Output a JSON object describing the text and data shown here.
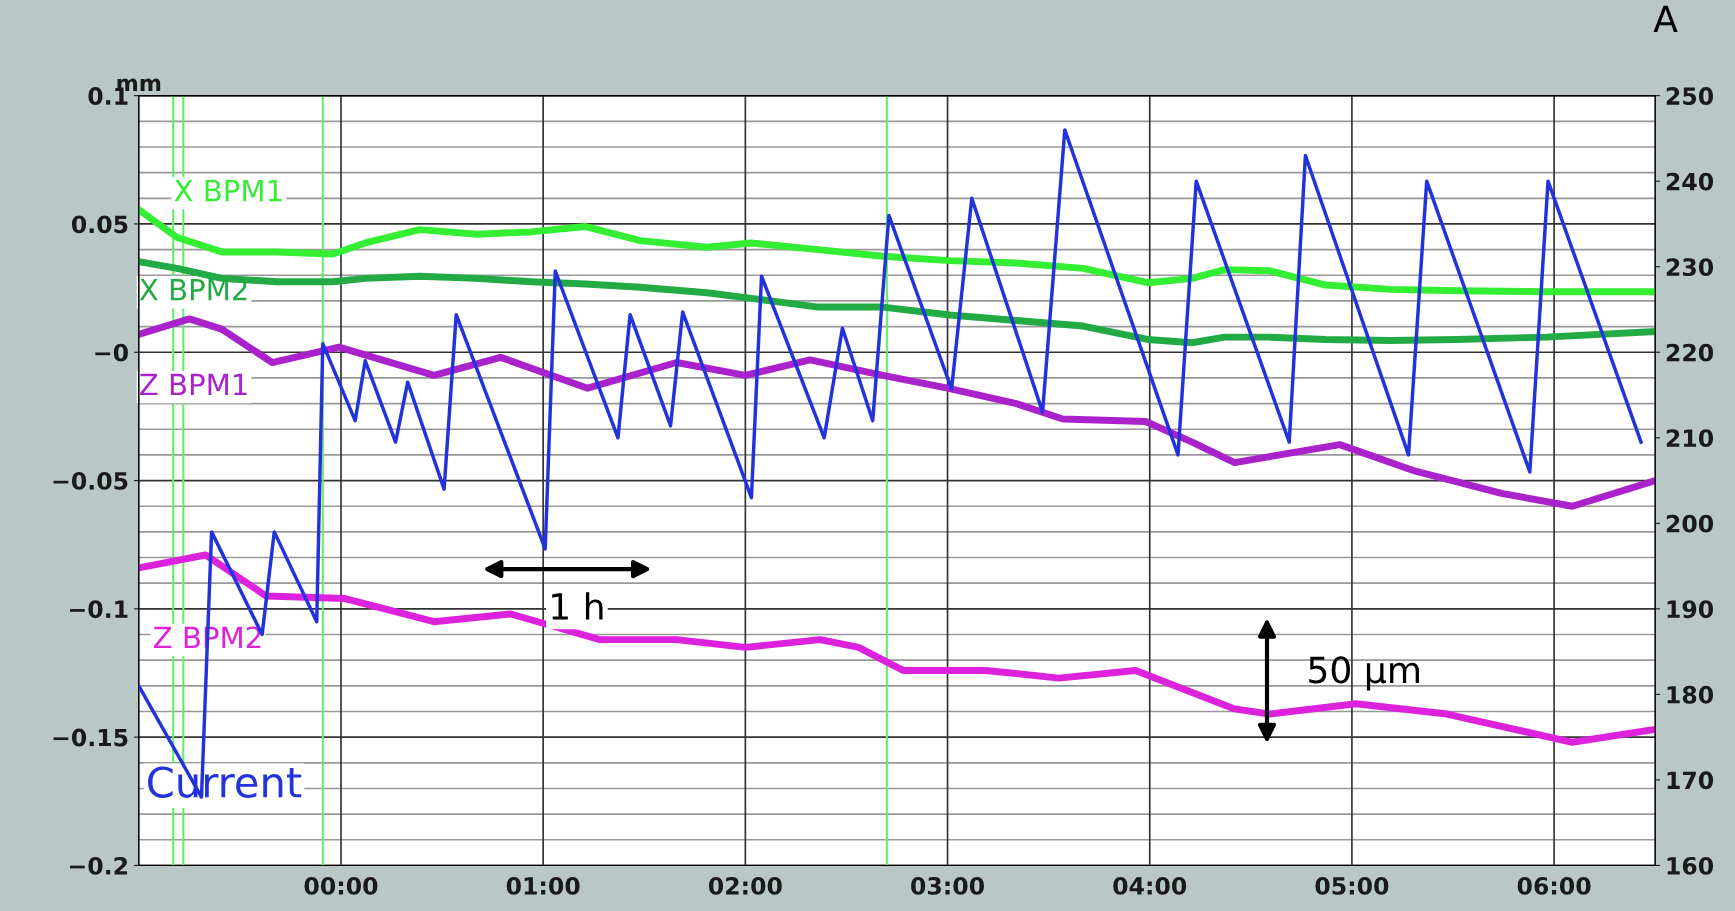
{
  "chart_data": {
    "type": "line",
    "ylabel": "mm",
    "annotations": [
      "1 h",
      "50 µm",
      "A"
    ],
    "xlim": [
      -1.0,
      6.5
    ],
    "xticks": [
      {
        "value": 0,
        "label": "00:00"
      },
      {
        "value": 1,
        "label": "01:00"
      },
      {
        "value": 2,
        "label": "02:00"
      },
      {
        "value": 3,
        "label": "03:00"
      },
      {
        "value": 4,
        "label": "04:00"
      },
      {
        "value": 5,
        "label": "05:00"
      },
      {
        "value": 6,
        "label": "06:00"
      }
    ],
    "ylim": [
      -0.2,
      0.1
    ],
    "yticks": [
      {
        "value": -0.2,
        "label": "−0.2"
      },
      {
        "value": -0.15,
        "label": "−0.15"
      },
      {
        "value": -0.1,
        "label": "−0.1"
      },
      {
        "value": -0.05,
        "label": "−0.05"
      },
      {
        "value": 0,
        "label": "−0"
      },
      0.05,
      0.1
    ],
    "y2lim": [
      160,
      250
    ],
    "y2ticks": [
      160,
      170,
      180,
      190,
      200,
      210,
      220,
      230,
      240,
      250
    ],
    "grid": true,
    "ref_lines": [
      {
        "axis": "x",
        "value": -0.83,
        "color": "#66ee66"
      },
      {
        "axis": "x",
        "value": -0.78,
        "color": "#66ee66"
      },
      {
        "axis": "x",
        "value": -0.09,
        "color": "#66ee66"
      },
      {
        "axis": "x",
        "value": 2.7,
        "color": "#66ee66"
      }
    ],
    "series": [
      {
        "name": "X BPM1",
        "color": "#33ee33",
        "x": [
          -1.0,
          -0.81,
          -0.59,
          -0.32,
          -0.04,
          0.12,
          0.39,
          0.67,
          0.94,
          1.21,
          1.48,
          1.81,
          2.03,
          2.36,
          2.68,
          3.01,
          3.34,
          3.67,
          3.99,
          4.21,
          4.37,
          4.59,
          4.87,
          5.19,
          5.52,
          5.96,
          6.5
        ],
        "values": [
          0.0555,
          0.0447,
          0.0391,
          0.0391,
          0.0383,
          0.0426,
          0.0478,
          0.046,
          0.0469,
          0.049,
          0.0435,
          0.0409,
          0.0426,
          0.04,
          0.0374,
          0.0357,
          0.0348,
          0.0327,
          0.0271,
          0.0288,
          0.0322,
          0.0318,
          0.0262,
          0.0245,
          0.024,
          0.0236,
          0.0236
        ]
      },
      {
        "name": "X BPM2",
        "color": "#22aa44",
        "x": [
          -1.0,
          -0.81,
          -0.59,
          -0.32,
          -0.04,
          0.12,
          0.39,
          0.67,
          0.94,
          1.21,
          1.48,
          1.81,
          2.03,
          2.36,
          2.68,
          3.01,
          3.34,
          3.67,
          3.99,
          4.21,
          4.37,
          4.59,
          4.87,
          5.19,
          5.52,
          5.96,
          6.5
        ],
        "values": [
          0.0353,
          0.0327,
          0.0288,
          0.0275,
          0.0275,
          0.0288,
          0.0296,
          0.0288,
          0.0275,
          0.0266,
          0.0253,
          0.0232,
          0.021,
          0.0176,
          0.0176,
          0.0145,
          0.0124,
          0.0102,
          0.005,
          0.0037,
          0.0059,
          0.0059,
          0.005,
          0.0046,
          0.005,
          0.0059,
          0.0081
        ]
      },
      {
        "name": "Z BPM1",
        "color": "#aa22cc",
        "x": [
          -1.0,
          -0.75,
          -0.59,
          -0.34,
          -0.01,
          0.46,
          0.79,
          1.22,
          1.66,
          2.0,
          2.32,
          2.68,
          3.0,
          3.34,
          3.57,
          3.98,
          4.21,
          4.42,
          4.94,
          5.3,
          5.74,
          6.09,
          6.5
        ],
        "values": [
          0.007,
          0.013,
          0.009,
          -0.004,
          0.002,
          -0.009,
          -0.002,
          -0.014,
          -0.004,
          -0.009,
          -0.003,
          -0.009,
          -0.014,
          -0.02,
          -0.026,
          -0.027,
          -0.035,
          -0.043,
          -0.036,
          -0.046,
          -0.055,
          -0.06,
          -0.05
        ]
      },
      {
        "name": "Z BPM2",
        "color": "#dd22dd",
        "x": [
          -1.0,
          -0.67,
          -0.37,
          0.02,
          0.46,
          0.84,
          1.28,
          1.66,
          2.0,
          2.37,
          2.56,
          2.78,
          3.19,
          3.55,
          3.93,
          4.42,
          4.59,
          5.02,
          5.47,
          6.09,
          6.5
        ],
        "values": [
          -0.084,
          -0.079,
          -0.095,
          -0.096,
          -0.105,
          -0.102,
          -0.112,
          -0.112,
          -0.115,
          -0.112,
          -0.115,
          -0.124,
          -0.124,
          -0.127,
          -0.124,
          -0.139,
          -0.141,
          -0.137,
          -0.141,
          -0.152,
          -0.147
        ]
      },
      {
        "name": "Current",
        "color": "#2233dd",
        "axis": "y2",
        "x": [
          -1.0,
          -0.69,
          -0.64,
          -0.39,
          -0.33,
          -0.12,
          -0.09,
          0.07,
          0.12,
          0.27,
          0.33,
          0.51,
          0.57,
          1.01,
          1.06,
          1.37,
          1.43,
          1.63,
          1.69,
          2.03,
          2.08,
          2.39,
          2.48,
          2.63,
          2.71,
          3.02,
          3.12,
          3.47,
          3.58,
          4.14,
          4.23,
          4.69,
          4.77,
          5.28,
          5.37,
          5.88,
          5.97,
          6.43
        ],
        "values": [
          181,
          168,
          199,
          187,
          199,
          188.5,
          221,
          212,
          219,
          209.5,
          216.5,
          204,
          224.4,
          197,
          229.5,
          210,
          224.4,
          211.4,
          224.7,
          203,
          228.9,
          210,
          222.8,
          212,
          236,
          215.7,
          238,
          213,
          246,
          208,
          240,
          209.5,
          243,
          208,
          240,
          206,
          240,
          209.5
        ]
      }
    ]
  }
}
